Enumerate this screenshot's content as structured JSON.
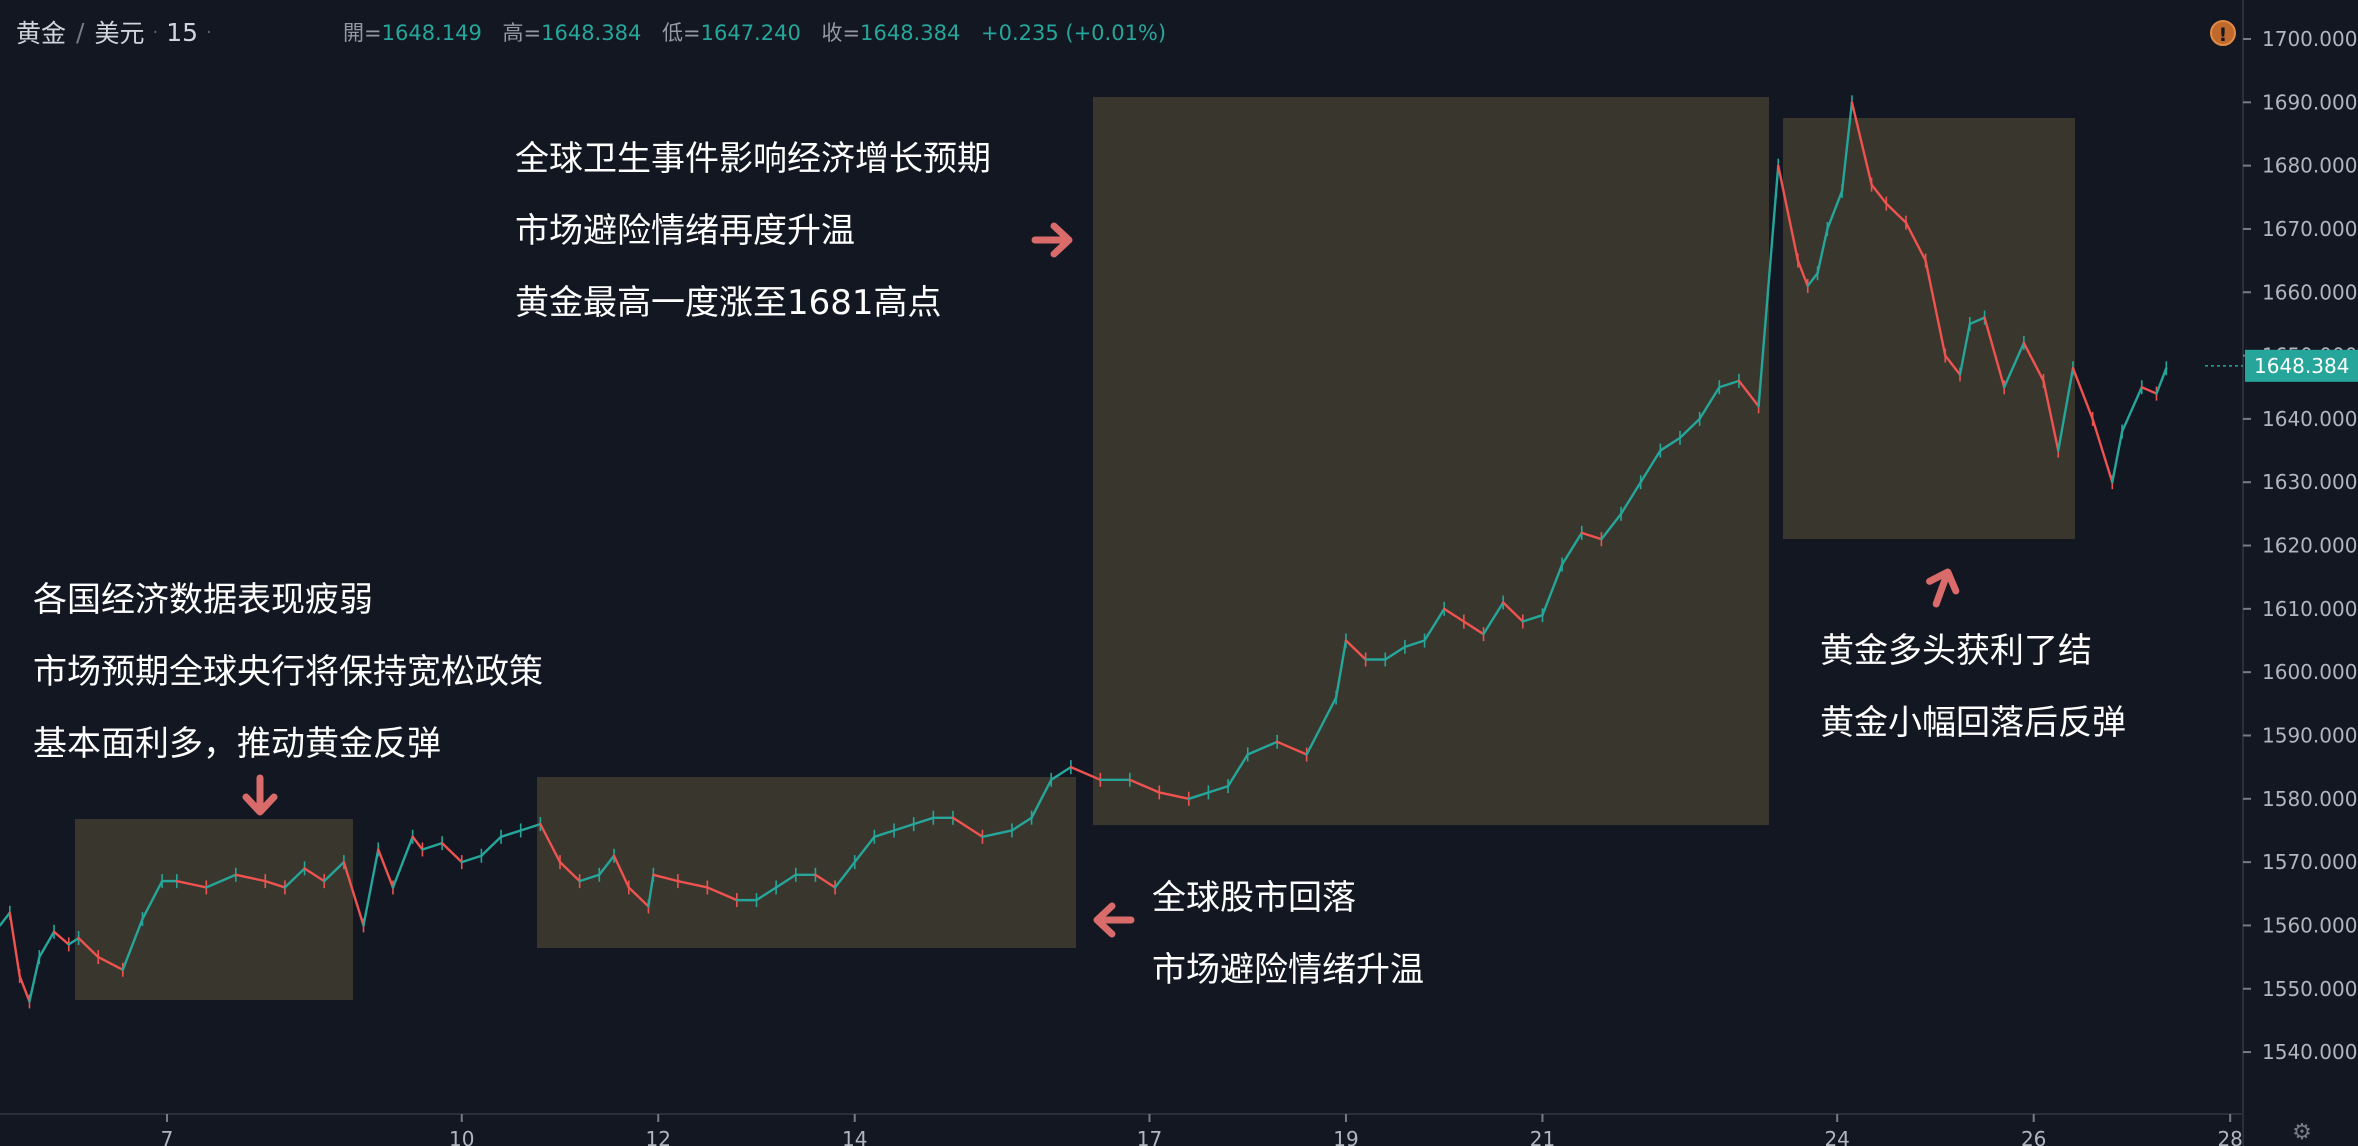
{
  "header": {
    "symbol": "黄金",
    "slash": "/",
    "quote": "美元",
    "interval": "15",
    "open_label": "開=",
    "open": "1648.149",
    "high_label": "高=",
    "high": "1648.384",
    "low_label": "低=",
    "low": "1647.240",
    "close_label": "收=",
    "close": "1648.384",
    "change": "+0.235 (+0.01%)"
  },
  "icons": {
    "alert": "alert-icon",
    "settings": "gear-icon",
    "arrow": "arrow-icon"
  },
  "colors": {
    "background": "#131722",
    "up": "#26a69a",
    "down": "#ef5350",
    "highlight_box": "#3c3a2f",
    "arrow": "#d96b6b",
    "last_price_tag": "#26a69a"
  },
  "annotations": {
    "top": [
      "全球卫生事件影响经济增长预期",
      "市场避险情绪再度升温",
      "黄金最高一度涨至1681高点"
    ],
    "left": [
      "各国经济数据表现疲弱",
      "市场预期全球央行将保持宽松政策",
      "基本面利多，推动黄金反弹"
    ],
    "bottom": [
      "全球股市回落",
      "市场避险情绪升温"
    ],
    "right": [
      "黄金多头获利了结",
      "黄金小幅回落后反弹"
    ]
  },
  "chart_data": {
    "type": "line",
    "title": "黄金 / 美元 · 15",
    "xlabel": "",
    "ylabel": "",
    "ylim": [
      1534.8,
      1703.0
    ],
    "xlim": [
      5.3,
      28.1
    ],
    "grid": false,
    "x_ticks": [
      {
        "x": 7,
        "label": "7"
      },
      {
        "x": 10,
        "label": "10"
      },
      {
        "x": 12,
        "label": "12"
      },
      {
        "x": 14,
        "label": "14"
      },
      {
        "x": 17,
        "label": "17"
      },
      {
        "x": 19,
        "label": "19"
      },
      {
        "x": 21,
        "label": "21"
      },
      {
        "x": 24,
        "label": "24"
      },
      {
        "x": 26,
        "label": "26"
      },
      {
        "x": 28,
        "label": "28"
      }
    ],
    "y_ticks": [
      1540,
      1550,
      1560,
      1570,
      1580,
      1590,
      1600,
      1610,
      1620,
      1630,
      1640,
      1650,
      1660,
      1670,
      1680,
      1690,
      1700
    ],
    "y_tick_labels": [
      "1540.000",
      "1550.000",
      "1560.000",
      "1570.000",
      "1580.000",
      "1590.000",
      "1600.000",
      "1610.000",
      "1620.000",
      "1630.000",
      "1640.000",
      "1650.000",
      "1660.000",
      "1670.000",
      "1680.000",
      "1690.000",
      "1700.000"
    ],
    "last_price": 1648.384,
    "last_price_label": "1648.384",
    "series": [
      {
        "x": [
          5.3,
          5.4,
          5.5,
          5.6,
          5.7,
          5.85,
          6.0,
          6.1,
          6.3,
          6.55,
          6.75,
          6.95,
          7.1,
          7.4,
          7.7,
          8.0,
          8.2,
          8.4,
          8.6,
          8.8,
          9.0,
          9.15,
          9.3,
          9.5,
          9.6,
          9.8,
          10.0,
          10.2,
          10.4,
          10.6,
          10.8,
          11.0,
          11.2,
          11.4,
          11.55,
          11.7,
          11.9,
          11.95,
          12.2,
          12.5,
          12.8,
          13.0,
          13.2,
          13.4,
          13.6,
          13.8,
          14.0,
          14.2,
          14.4,
          14.6,
          14.8,
          15.0,
          15.3,
          15.6,
          15.8,
          16.0,
          16.2,
          16.5,
          16.8,
          17.1,
          17.4,
          17.6,
          17.8,
          18.0,
          18.3,
          18.6,
          18.9,
          19.0,
          19.2,
          19.4,
          19.6,
          19.8,
          20.0,
          20.2,
          20.4,
          20.6,
          20.8,
          21.0,
          21.2,
          21.4,
          21.6,
          21.8,
          22.0,
          22.2,
          22.4,
          22.6,
          22.8,
          23.0,
          23.2,
          23.4,
          23.6,
          23.7,
          23.8,
          23.9,
          24.05,
          24.15,
          24.35,
          24.5,
          24.7,
          24.9,
          25.1,
          25.25,
          25.35,
          25.5,
          25.7,
          25.9,
          26.1,
          26.25,
          26.4,
          26.6,
          26.8,
          26.9,
          27.1,
          27.25,
          27.35
        ],
        "y": [
          1560,
          1562,
          1552,
          1548,
          1555,
          1559,
          1557,
          1558,
          1555,
          1553,
          1561,
          1567,
          1567,
          1566,
          1568,
          1567,
          1566,
          1569,
          1567,
          1570,
          1560,
          1572,
          1566,
          1574,
          1572,
          1573,
          1570,
          1571,
          1574,
          1575,
          1576,
          1570,
          1567,
          1568,
          1571,
          1566,
          1563,
          1568,
          1567,
          1566,
          1564,
          1564,
          1566,
          1568,
          1568,
          1566,
          1570,
          1574,
          1575,
          1576,
          1577,
          1577,
          1574,
          1575,
          1577,
          1583,
          1585,
          1583,
          1583,
          1581,
          1580,
          1581,
          1582,
          1587,
          1589,
          1587,
          1596,
          1605,
          1602,
          1602,
          1604,
          1605,
          1610,
          1608,
          1606,
          1611,
          1608,
          1609,
          1617,
          1622,
          1621,
          1625,
          1630,
          1635,
          1637,
          1640,
          1645,
          1646,
          1642,
          1680,
          1665,
          1661,
          1663,
          1670,
          1676,
          1690,
          1677,
          1674,
          1671,
          1665,
          1650,
          1647,
          1655,
          1656,
          1645,
          1652,
          1646,
          1635,
          1648,
          1640,
          1630,
          1638,
          1645,
          1644,
          1648
        ]
      }
    ]
  }
}
